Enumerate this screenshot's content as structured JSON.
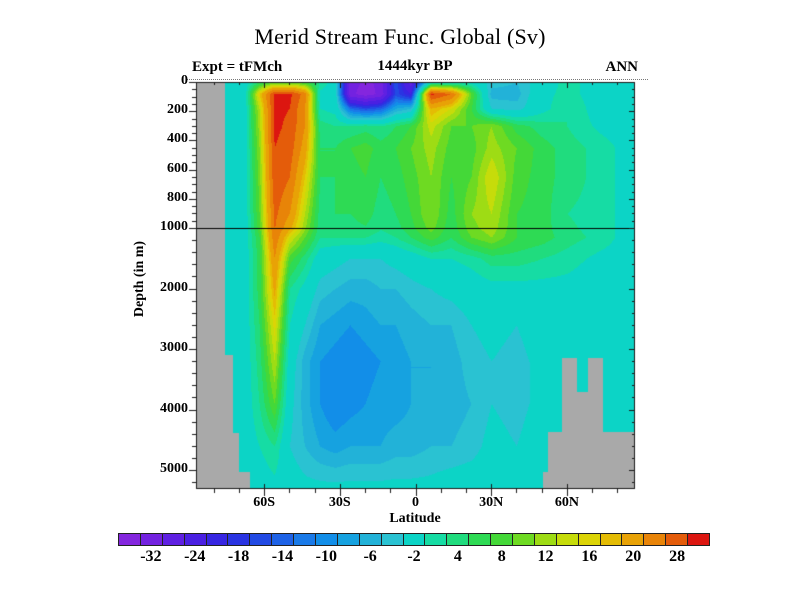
{
  "title": "Merid Stream Func. Global (Sv)",
  "subtitle_left": "Expt = tFMch",
  "subtitle_center": "1444kyr BP",
  "subtitle_right": "ANN",
  "axes": {
    "x_label": "Latitude",
    "y_label": "Depth (in m)",
    "x_ticks": [
      {
        "lat": -60,
        "label": "60S"
      },
      {
        "lat": -30,
        "label": "30S"
      },
      {
        "lat": 0,
        "label": "0"
      },
      {
        "lat": 30,
        "label": "30N"
      },
      {
        "lat": 60,
        "label": "60N"
      }
    ],
    "x_minor_step_deg": 10,
    "y_ticks": [
      {
        "depth": 0,
        "label": "0"
      },
      {
        "depth": 200,
        "label": "200"
      },
      {
        "depth": 400,
        "label": "400"
      },
      {
        "depth": 600,
        "label": "600"
      },
      {
        "depth": 800,
        "label": "800"
      },
      {
        "depth": 1000,
        "label": "1000"
      },
      {
        "depth": 2000,
        "label": "2000"
      },
      {
        "depth": 3000,
        "label": "3000"
      },
      {
        "depth": 4000,
        "label": "4000"
      },
      {
        "depth": 5000,
        "label": "5000"
      }
    ],
    "y_minor_step_upper_m": 50,
    "y_minor_step_lower_m": 200,
    "ref_line_depth_m": 1000
  },
  "colorbar": {
    "units": "Sv",
    "labels": [
      -32,
      -24,
      -18,
      -14,
      -10,
      -6,
      -2,
      4,
      8,
      12,
      16,
      20,
      28
    ],
    "label_cell_indices": [
      1,
      3,
      5,
      7,
      9,
      11,
      13,
      15,
      17,
      19,
      21,
      23,
      25
    ],
    "boundaries": [
      -32,
      -28,
      -24,
      -20,
      -18,
      -16,
      -14,
      -12,
      -10,
      -8,
      -6,
      -4,
      -2,
      2,
      4,
      6,
      8,
      10,
      12,
      14,
      16,
      18,
      20,
      24,
      28,
      32
    ],
    "colors": [
      "#8426de",
      "#7322e0",
      "#5f20e2",
      "#4a20e2",
      "#3726e2",
      "#2a34e2",
      "#224ae4",
      "#1e62e6",
      "#1a7ae8",
      "#128ee8",
      "#16a2e0",
      "#22b2d8",
      "#2ac2d2",
      "#0cd4c6",
      "#16dca4",
      "#20dc7e",
      "#2eda54",
      "#44d838",
      "#6eda22",
      "#9edc14",
      "#c6dc0a",
      "#dcd406",
      "#e4bc04",
      "#e8a206",
      "#e88408",
      "#e45c0a",
      "#dc1610"
    ]
  },
  "chart_data": {
    "type": "heatmap",
    "title": "Merid Stream Func. Global (Sv)",
    "xlabel": "Latitude",
    "ylabel": "Depth (in m)",
    "units": "Sv",
    "xlim": [
      -87,
      87
    ],
    "ylim": [
      0,
      5314
    ],
    "x_lat_deg": [
      -87,
      -80,
      -74,
      -68,
      -62,
      -56,
      -50,
      -44,
      -38,
      -32,
      -26,
      -20,
      -14,
      -8,
      -2,
      6,
      14,
      22,
      30,
      40,
      50,
      60,
      75,
      87
    ],
    "y_depth_m": [
      0,
      80,
      180,
      300,
      450,
      650,
      900,
      1150,
      1500,
      2000,
      2600,
      3200,
      3900,
      4600,
      5314
    ],
    "values_sv": [
      [
        0,
        0,
        0,
        0,
        6,
        10,
        10,
        8,
        4,
        0,
        -30,
        -33,
        -31,
        -14,
        -26,
        1,
        1,
        1,
        -3,
        -4,
        0,
        3,
        0,
        0
      ],
      [
        0,
        0,
        0,
        0,
        18,
        33,
        33,
        26,
        1,
        0,
        -31,
        -34,
        -31,
        -15,
        -20,
        33,
        28,
        10,
        -5,
        -5,
        1,
        3,
        0,
        0
      ],
      [
        0,
        0,
        0,
        0,
        14,
        33,
        32,
        24,
        2,
        1,
        -12,
        -15,
        -13,
        -6,
        -4,
        20,
        16,
        8,
        -2,
        -3,
        1,
        4,
        0,
        0
      ],
      [
        0,
        0,
        0,
        0,
        13,
        33,
        31,
        24,
        5,
        4,
        4,
        5,
        4,
        6,
        8,
        15,
        10,
        10,
        12,
        7,
        5,
        4,
        1,
        0
      ],
      [
        0,
        0,
        0,
        0,
        12,
        32,
        30,
        22,
        6,
        6,
        8,
        9,
        7,
        8,
        10,
        13,
        9,
        9,
        13,
        10,
        7,
        5,
        3,
        0
      ],
      [
        0,
        0,
        0,
        0,
        11,
        31,
        28,
        18,
        6,
        6,
        7,
        8,
        6,
        7,
        9,
        12,
        8,
        10,
        16,
        9,
        7,
        5,
        3,
        0
      ],
      [
        0,
        0,
        0,
        0,
        10,
        29,
        24,
        14,
        5,
        6,
        6,
        7,
        5,
        6,
        8,
        12,
        7,
        12,
        14,
        8,
        7,
        4,
        3,
        0
      ],
      [
        0,
        0,
        0,
        0,
        8,
        27,
        16,
        10,
        4,
        4,
        4,
        4,
        3,
        4,
        6,
        9,
        6,
        10,
        12,
        8,
        7,
        5,
        3,
        0
      ],
      [
        0,
        0,
        0,
        0,
        7,
        24,
        9,
        5,
        0,
        -1,
        -2,
        -2,
        -2,
        -1,
        0,
        2,
        2,
        3,
        5,
        5,
        4,
        3,
        1,
        0
      ],
      [
        0,
        0,
        0,
        0,
        7,
        21,
        4,
        1,
        -3,
        -4,
        -5,
        -5,
        -4,
        -4,
        -3,
        -2,
        -1,
        0,
        1,
        1,
        1,
        1,
        0,
        0
      ],
      [
        0,
        0,
        0,
        0,
        6,
        17,
        2,
        -2,
        -6,
        -7,
        -8,
        -7,
        -6,
        -6,
        -5,
        -4,
        -4,
        -2,
        -1,
        -2,
        0,
        1,
        0,
        0
      ],
      [
        0,
        0,
        0,
        0,
        5,
        14,
        0,
        -5,
        -8,
        -9,
        -10,
        -9,
        -8,
        -7,
        -6,
        -6,
        -5,
        -3,
        -2,
        -3,
        -1,
        1,
        0,
        0
      ],
      [
        0,
        0,
        0,
        0,
        4,
        10,
        -1,
        -5,
        -8,
        -10,
        -9,
        -8,
        -7,
        -7,
        -6,
        -6,
        -5,
        -4,
        -2,
        -3,
        -1,
        0,
        0,
        0
      ],
      [
        0,
        0,
        0,
        0,
        2,
        4,
        -2,
        -4,
        -6,
        -7,
        -6,
        -6,
        -6,
        -5,
        -5,
        -4,
        -4,
        -3,
        -1,
        -2,
        0,
        0,
        0,
        0
      ],
      [
        0,
        0,
        0,
        0,
        0,
        1,
        0,
        -1,
        -1,
        -1,
        -1,
        -1,
        -1,
        -1,
        -1,
        -1,
        0,
        0,
        0,
        1,
        0,
        0,
        0,
        0
      ]
    ],
    "land_mask_rects": [
      {
        "lat": [
          -87,
          -75.5
        ],
        "depth": [
          0,
          5314
        ]
      },
      {
        "lat": [
          -87,
          -72.5
        ],
        "depth": [
          3100,
          5314
        ]
      },
      {
        "lat": [
          -87,
          -70.0
        ],
        "depth": [
          4390,
          5314
        ]
      },
      {
        "lat": [
          -87,
          -65.5
        ],
        "depth": [
          5030,
          5314
        ]
      },
      {
        "lat": [
          58.0,
          64.0
        ],
        "depth": [
          3150,
          5314
        ]
      },
      {
        "lat": [
          68.3,
          74.3
        ],
        "depth": [
          3150,
          5314
        ]
      },
      {
        "lat": [
          64.0,
          68.3
        ],
        "depth": [
          3715,
          5314
        ]
      },
      {
        "lat": [
          52.5,
          87.0
        ],
        "depth": [
          4372,
          5314
        ]
      },
      {
        "lat": [
          50.5,
          52.5
        ],
        "depth": [
          5030,
          5314
        ]
      }
    ]
  },
  "colors": {
    "background": "#ffffff",
    "land_gray": "#a9a9a9",
    "axis": "#1a1a1a",
    "ref_line": "#000000"
  }
}
